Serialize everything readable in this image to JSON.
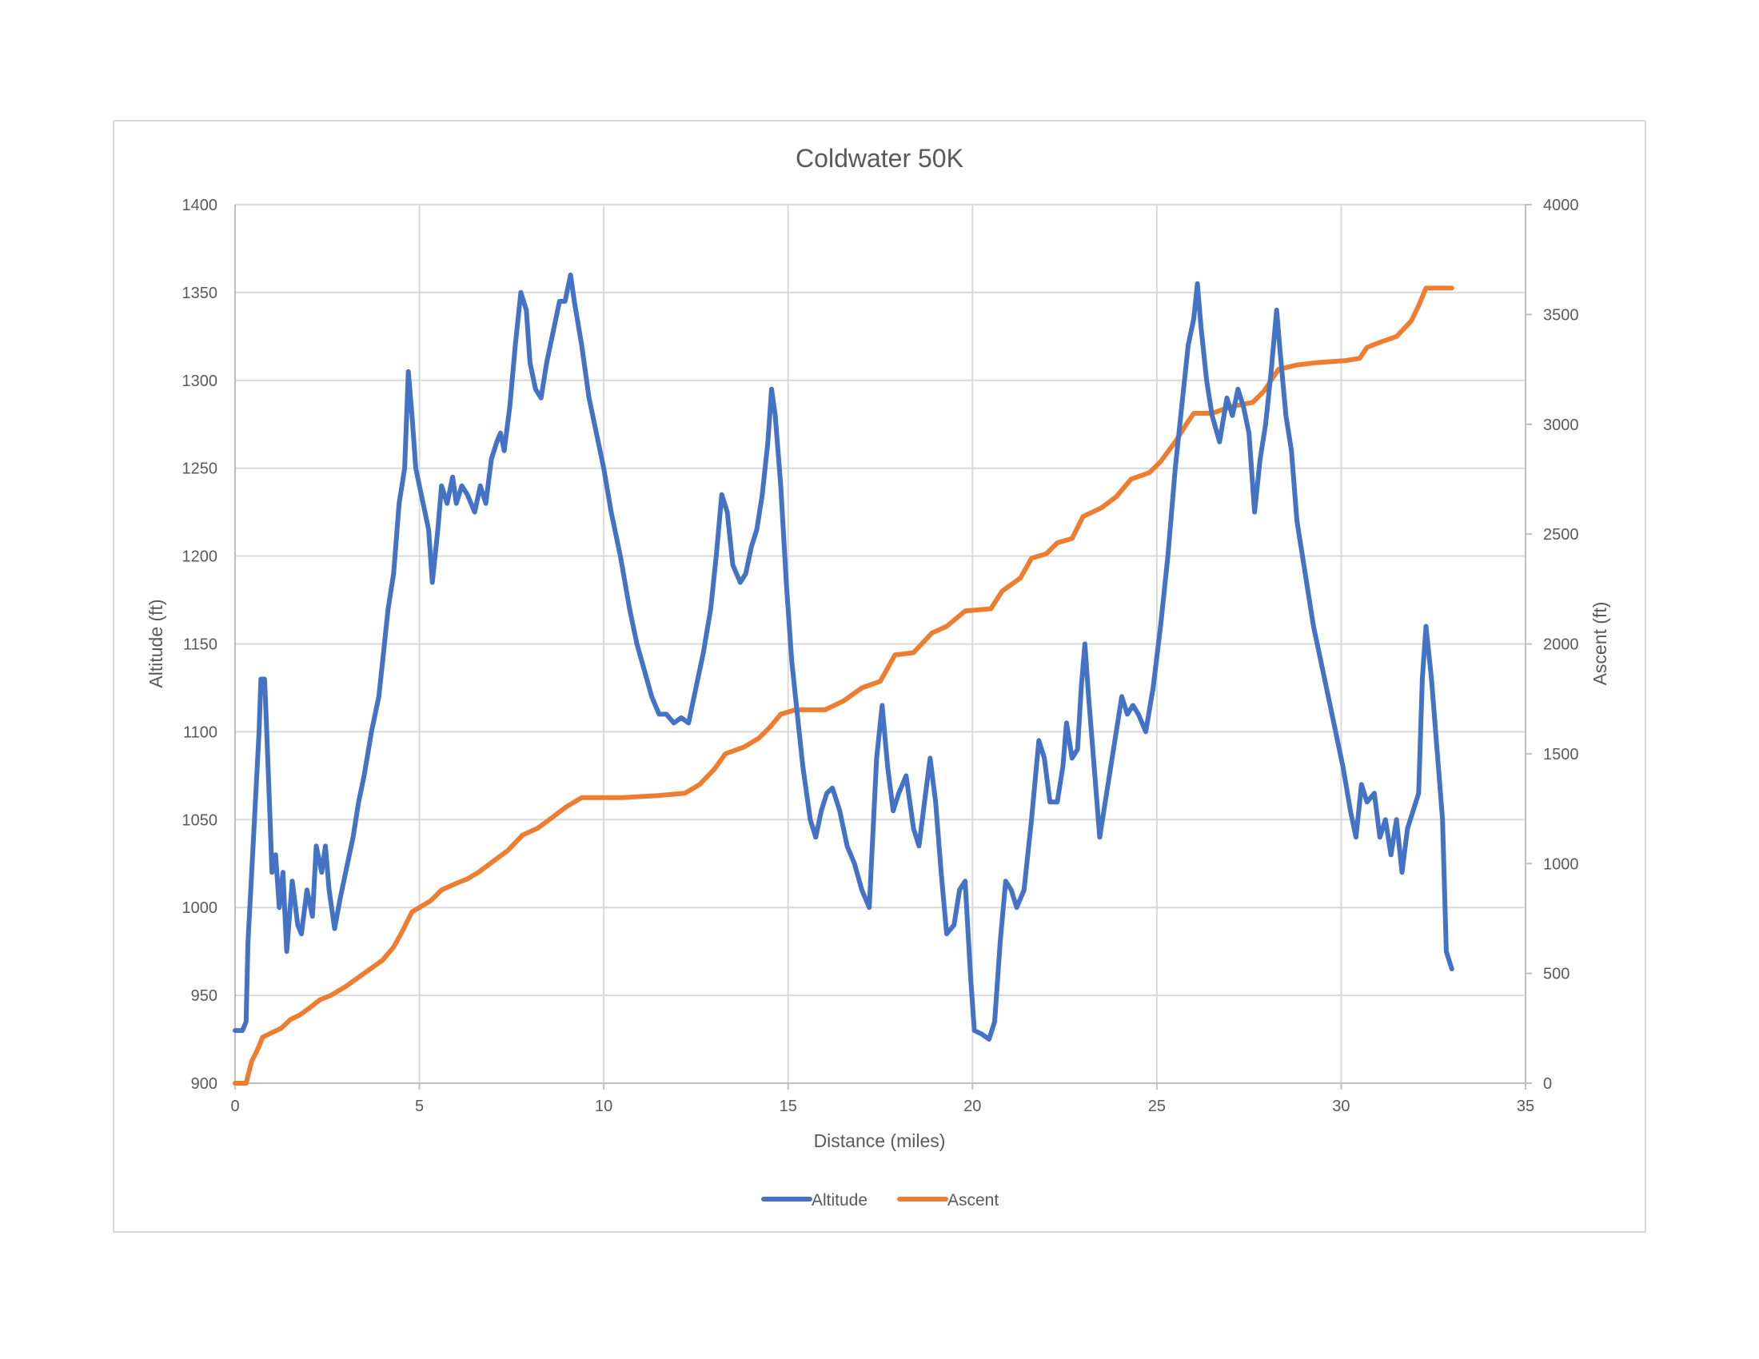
{
  "chart_data": {
    "type": "line",
    "title": "Coldwater 50K",
    "xlabel": "Distance (miles)",
    "ylabel": "Altitude (ft)",
    "y2label": "Ascent (ft)",
    "xlim": [
      0,
      35
    ],
    "ylim": [
      900,
      1400
    ],
    "y2lim": [
      0,
      4000
    ],
    "x_ticks": [
      "0",
      "5",
      "10",
      "15",
      "20",
      "25",
      "30",
      "35"
    ],
    "y_ticks": [
      "900",
      "950",
      "1000",
      "1050",
      "1100",
      "1150",
      "1200",
      "1250",
      "1300",
      "1350",
      "1400"
    ],
    "y2_ticks": [
      "0",
      "500",
      "1000",
      "1500",
      "2000",
      "2500",
      "3000",
      "3500",
      "4000"
    ],
    "grid": true,
    "legend_position": "bottom",
    "series": [
      {
        "name": "Altitude",
        "axis": "left",
        "color": "#4472C4",
        "points": [
          [
            0,
            930
          ],
          [
            0.2,
            930
          ],
          [
            0.3,
            935
          ],
          [
            0.35,
            980
          ],
          [
            0.45,
            1020
          ],
          [
            0.55,
            1060
          ],
          [
            0.65,
            1100
          ],
          [
            0.7,
            1130
          ],
          [
            0.8,
            1130
          ],
          [
            0.85,
            1105
          ],
          [
            0.95,
            1050
          ],
          [
            1.0,
            1020
          ],
          [
            1.1,
            1030
          ],
          [
            1.2,
            1000
          ],
          [
            1.3,
            1020
          ],
          [
            1.4,
            975
          ],
          [
            1.55,
            1015
          ],
          [
            1.7,
            990
          ],
          [
            1.8,
            985
          ],
          [
            1.95,
            1010
          ],
          [
            2.1,
            995
          ],
          [
            2.2,
            1035
          ],
          [
            2.35,
            1020
          ],
          [
            2.45,
            1035
          ],
          [
            2.55,
            1010
          ],
          [
            2.7,
            988
          ],
          [
            2.85,
            1005
          ],
          [
            3.0,
            1020
          ],
          [
            3.2,
            1040
          ],
          [
            3.35,
            1060
          ],
          [
            3.5,
            1075
          ],
          [
            3.7,
            1100
          ],
          [
            3.9,
            1120
          ],
          [
            4.0,
            1140
          ],
          [
            4.15,
            1170
          ],
          [
            4.3,
            1190
          ],
          [
            4.45,
            1230
          ],
          [
            4.6,
            1250
          ],
          [
            4.7,
            1305
          ],
          [
            4.8,
            1280
          ],
          [
            4.9,
            1250
          ],
          [
            5.0,
            1240
          ],
          [
            5.1,
            1230
          ],
          [
            5.25,
            1215
          ],
          [
            5.35,
            1185
          ],
          [
            5.5,
            1215
          ],
          [
            5.6,
            1240
          ],
          [
            5.75,
            1230
          ],
          [
            5.9,
            1245
          ],
          [
            6.0,
            1230
          ],
          [
            6.15,
            1240
          ],
          [
            6.3,
            1235
          ],
          [
            6.5,
            1225
          ],
          [
            6.65,
            1240
          ],
          [
            6.8,
            1230
          ],
          [
            6.95,
            1255
          ],
          [
            7.1,
            1265
          ],
          [
            7.2,
            1270
          ],
          [
            7.3,
            1260
          ],
          [
            7.45,
            1285
          ],
          [
            7.6,
            1320
          ],
          [
            7.75,
            1350
          ],
          [
            7.9,
            1340
          ],
          [
            8.0,
            1310
          ],
          [
            8.15,
            1295
          ],
          [
            8.3,
            1290
          ],
          [
            8.45,
            1310
          ],
          [
            8.6,
            1325
          ],
          [
            8.8,
            1345
          ],
          [
            8.95,
            1345
          ],
          [
            9.1,
            1360
          ],
          [
            9.2,
            1345
          ],
          [
            9.4,
            1320
          ],
          [
            9.6,
            1290
          ],
          [
            9.8,
            1270
          ],
          [
            10.0,
            1250
          ],
          [
            10.2,
            1225
          ],
          [
            10.45,
            1200
          ],
          [
            10.7,
            1170
          ],
          [
            10.9,
            1150
          ],
          [
            11.1,
            1135
          ],
          [
            11.3,
            1120
          ],
          [
            11.5,
            1110
          ],
          [
            11.7,
            1110
          ],
          [
            11.9,
            1105
          ],
          [
            12.1,
            1108
          ],
          [
            12.3,
            1105
          ],
          [
            12.5,
            1125
          ],
          [
            12.7,
            1145
          ],
          [
            12.9,
            1170
          ],
          [
            13.05,
            1200
          ],
          [
            13.2,
            1235
          ],
          [
            13.35,
            1225
          ],
          [
            13.5,
            1195
          ],
          [
            13.7,
            1185
          ],
          [
            13.85,
            1190
          ],
          [
            14.0,
            1205
          ],
          [
            14.15,
            1215
          ],
          [
            14.3,
            1235
          ],
          [
            14.45,
            1265
          ],
          [
            14.55,
            1295
          ],
          [
            14.65,
            1280
          ],
          [
            14.8,
            1240
          ],
          [
            14.95,
            1185
          ],
          [
            15.1,
            1140
          ],
          [
            15.25,
            1110
          ],
          [
            15.4,
            1080
          ],
          [
            15.6,
            1050
          ],
          [
            15.75,
            1040
          ],
          [
            15.9,
            1055
          ],
          [
            16.05,
            1065
          ],
          [
            16.2,
            1068
          ],
          [
            16.4,
            1055
          ],
          [
            16.6,
            1035
          ],
          [
            16.8,
            1025
          ],
          [
            17.0,
            1010
          ],
          [
            17.2,
            1000
          ],
          [
            17.4,
            1085
          ],
          [
            17.55,
            1115
          ],
          [
            17.7,
            1080
          ],
          [
            17.85,
            1055
          ],
          [
            18.0,
            1065
          ],
          [
            18.2,
            1075
          ],
          [
            18.4,
            1045
          ],
          [
            18.55,
            1035
          ],
          [
            18.7,
            1060
          ],
          [
            18.85,
            1085
          ],
          [
            19.0,
            1060
          ],
          [
            19.15,
            1020
          ],
          [
            19.3,
            985
          ],
          [
            19.5,
            990
          ],
          [
            19.65,
            1010
          ],
          [
            19.8,
            1015
          ],
          [
            19.95,
            960
          ],
          [
            20.05,
            930
          ],
          [
            20.25,
            928
          ],
          [
            20.45,
            925
          ],
          [
            20.6,
            935
          ],
          [
            20.75,
            980
          ],
          [
            20.9,
            1015
          ],
          [
            21.05,
            1010
          ],
          [
            21.2,
            1000
          ],
          [
            21.4,
            1010
          ],
          [
            21.6,
            1050
          ],
          [
            21.8,
            1095
          ],
          [
            21.95,
            1085
          ],
          [
            22.1,
            1060
          ],
          [
            22.3,
            1060
          ],
          [
            22.45,
            1080
          ],
          [
            22.55,
            1105
          ],
          [
            22.7,
            1085
          ],
          [
            22.85,
            1090
          ],
          [
            22.95,
            1125
          ],
          [
            23.05,
            1150
          ],
          [
            23.15,
            1120
          ],
          [
            23.3,
            1080
          ],
          [
            23.45,
            1040
          ],
          [
            23.6,
            1060
          ],
          [
            23.75,
            1080
          ],
          [
            23.9,
            1100
          ],
          [
            24.05,
            1120
          ],
          [
            24.2,
            1110
          ],
          [
            24.35,
            1115
          ],
          [
            24.5,
            1110
          ],
          [
            24.7,
            1100
          ],
          [
            24.9,
            1125
          ],
          [
            25.1,
            1160
          ],
          [
            25.3,
            1200
          ],
          [
            25.5,
            1250
          ],
          [
            25.7,
            1290
          ],
          [
            25.85,
            1320
          ],
          [
            26.0,
            1335
          ],
          [
            26.1,
            1355
          ],
          [
            26.2,
            1330
          ],
          [
            26.35,
            1300
          ],
          [
            26.5,
            1280
          ],
          [
            26.7,
            1265
          ],
          [
            26.9,
            1290
          ],
          [
            27.05,
            1280
          ],
          [
            27.2,
            1295
          ],
          [
            27.35,
            1285
          ],
          [
            27.5,
            1270
          ],
          [
            27.65,
            1225
          ],
          [
            27.8,
            1255
          ],
          [
            27.95,
            1275
          ],
          [
            28.1,
            1305
          ],
          [
            28.25,
            1340
          ],
          [
            28.35,
            1315
          ],
          [
            28.5,
            1280
          ],
          [
            28.65,
            1260
          ],
          [
            28.8,
            1220
          ],
          [
            28.95,
            1200
          ],
          [
            29.1,
            1180
          ],
          [
            29.25,
            1160
          ],
          [
            29.45,
            1140
          ],
          [
            29.65,
            1120
          ],
          [
            29.85,
            1100
          ],
          [
            30.05,
            1080
          ],
          [
            30.25,
            1055
          ],
          [
            30.4,
            1040
          ],
          [
            30.55,
            1070
          ],
          [
            30.7,
            1060
          ],
          [
            30.9,
            1065
          ],
          [
            31.05,
            1040
          ],
          [
            31.2,
            1050
          ],
          [
            31.35,
            1030
          ],
          [
            31.5,
            1050
          ],
          [
            31.65,
            1020
          ],
          [
            31.8,
            1045
          ],
          [
            31.95,
            1055
          ],
          [
            32.1,
            1065
          ],
          [
            32.2,
            1130
          ],
          [
            32.3,
            1160
          ],
          [
            32.45,
            1130
          ],
          [
            32.6,
            1090
          ],
          [
            32.75,
            1050
          ],
          [
            32.85,
            975
          ],
          [
            33.0,
            965
          ]
        ]
      },
      {
        "name": "Ascent",
        "axis": "right",
        "color": "#ED7D31",
        "points": [
          [
            0,
            0
          ],
          [
            0.3,
            0
          ],
          [
            0.45,
            100
          ],
          [
            0.6,
            150
          ],
          [
            0.75,
            210
          ],
          [
            1.0,
            230
          ],
          [
            1.25,
            250
          ],
          [
            1.5,
            290
          ],
          [
            1.75,
            310
          ],
          [
            2.0,
            340
          ],
          [
            2.3,
            380
          ],
          [
            2.6,
            400
          ],
          [
            3.0,
            440
          ],
          [
            3.5,
            500
          ],
          [
            4.0,
            560
          ],
          [
            4.3,
            620
          ],
          [
            4.5,
            680
          ],
          [
            4.8,
            780
          ],
          [
            5.0,
            800
          ],
          [
            5.3,
            830
          ],
          [
            5.6,
            880
          ],
          [
            6.0,
            910
          ],
          [
            6.3,
            930
          ],
          [
            6.6,
            960
          ],
          [
            7.0,
            1010
          ],
          [
            7.4,
            1060
          ],
          [
            7.8,
            1130
          ],
          [
            8.2,
            1160
          ],
          [
            8.6,
            1210
          ],
          [
            9.0,
            1260
          ],
          [
            9.4,
            1300
          ],
          [
            10.5,
            1300
          ],
          [
            11.5,
            1310
          ],
          [
            12.2,
            1320
          ],
          [
            12.6,
            1360
          ],
          [
            13.0,
            1430
          ],
          [
            13.3,
            1500
          ],
          [
            13.8,
            1530
          ],
          [
            14.2,
            1570
          ],
          [
            14.5,
            1620
          ],
          [
            14.8,
            1680
          ],
          [
            15.2,
            1700
          ],
          [
            16.0,
            1700
          ],
          [
            16.5,
            1740
          ],
          [
            17.0,
            1800
          ],
          [
            17.5,
            1830
          ],
          [
            17.9,
            1950
          ],
          [
            18.4,
            1960
          ],
          [
            18.9,
            2050
          ],
          [
            19.3,
            2080
          ],
          [
            19.8,
            2150
          ],
          [
            20.5,
            2160
          ],
          [
            20.8,
            2240
          ],
          [
            21.3,
            2300
          ],
          [
            21.6,
            2390
          ],
          [
            22.0,
            2410
          ],
          [
            22.3,
            2460
          ],
          [
            22.7,
            2480
          ],
          [
            23.0,
            2580
          ],
          [
            23.5,
            2620
          ],
          [
            23.9,
            2670
          ],
          [
            24.3,
            2750
          ],
          [
            24.8,
            2780
          ],
          [
            25.1,
            2830
          ],
          [
            25.5,
            2920
          ],
          [
            25.8,
            3000
          ],
          [
            26.0,
            3050
          ],
          [
            26.5,
            3050
          ],
          [
            27.0,
            3080
          ],
          [
            27.6,
            3100
          ],
          [
            27.9,
            3150
          ],
          [
            28.3,
            3250
          ],
          [
            28.8,
            3270
          ],
          [
            29.3,
            3280
          ],
          [
            30.1,
            3290
          ],
          [
            30.5,
            3300
          ],
          [
            30.7,
            3350
          ],
          [
            31.0,
            3370
          ],
          [
            31.5,
            3400
          ],
          [
            31.9,
            3470
          ],
          [
            32.1,
            3540
          ],
          [
            32.3,
            3620
          ],
          [
            33.0,
            3620
          ]
        ]
      }
    ]
  }
}
